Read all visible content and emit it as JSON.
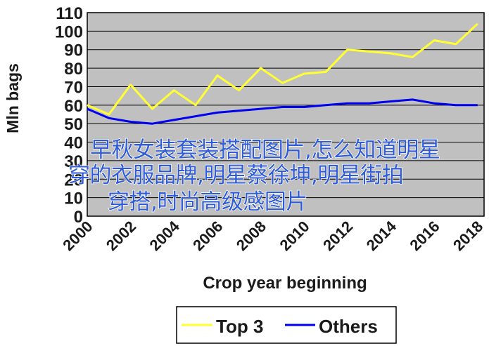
{
  "chart_data": {
    "type": "line",
    "ylabel": "Mln bags",
    "xlabel": "Crop year beginning",
    "ylim": [
      0,
      110
    ],
    "yticks": [
      0,
      10,
      20,
      30,
      40,
      50,
      60,
      70,
      80,
      90,
      100,
      110
    ],
    "xlim": [
      2000,
      2018.3
    ],
    "xticks": [
      "2000",
      "2002",
      "2004",
      "2006",
      "2008",
      "2010",
      "2012",
      "2014",
      "2016",
      "2018"
    ],
    "grid": "horizontal",
    "plot_background": "#c0c0c0",
    "legend_position": "bottom",
    "series": [
      {
        "name": "Top 3",
        "color": "#ffff33",
        "points": [
          [
            2000,
            60
          ],
          [
            2001,
            55
          ],
          [
            2002,
            71
          ],
          [
            2003,
            58
          ],
          [
            2004,
            68
          ],
          [
            2005,
            60
          ],
          [
            2006,
            76
          ],
          [
            2007,
            68
          ],
          [
            2008,
            80
          ],
          [
            2009,
            72
          ],
          [
            2010,
            77
          ],
          [
            2011,
            78
          ],
          [
            2012,
            90
          ],
          [
            2013,
            89
          ],
          [
            2014,
            88
          ],
          [
            2015,
            86
          ],
          [
            2016,
            95
          ],
          [
            2017,
            93
          ],
          [
            2018,
            104
          ]
        ]
      },
      {
        "name": "Others",
        "color": "#0000ee",
        "points": [
          [
            2000,
            58
          ],
          [
            2001,
            53
          ],
          [
            2002,
            51
          ],
          [
            2003,
            50
          ],
          [
            2004,
            52
          ],
          [
            2005,
            54
          ],
          [
            2006,
            56
          ],
          [
            2007,
            57
          ],
          [
            2008,
            58
          ],
          [
            2009,
            59
          ],
          [
            2010,
            59
          ],
          [
            2011,
            60
          ],
          [
            2012,
            61
          ],
          [
            2013,
            61
          ],
          [
            2014,
            62
          ],
          [
            2015,
            63
          ],
          [
            2016,
            61
          ],
          [
            2017,
            60
          ],
          [
            2018,
            60
          ]
        ]
      }
    ]
  },
  "overlay": {
    "line1": "早秋女装套装搭配图片,怎么知道明星",
    "line2": "穿的衣服品牌,明星蔡徐坤,明星街拍",
    "line3": "穿搭,时尚高级感图片"
  }
}
